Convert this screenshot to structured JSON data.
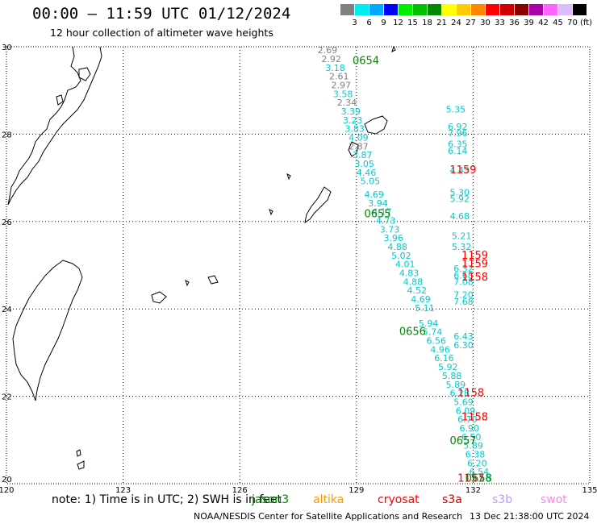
{
  "header": {
    "title": "00:00 — 11:59 UTC 01/12/2024",
    "subtitle": "12 hour collection of altimeter wave heights"
  },
  "legend": {
    "colors": [
      "#808080",
      "#00eeee",
      "#00aaff",
      "#0000ff",
      "#00ee00",
      "#00c000",
      "#008800",
      "#ffff00",
      "#ffcc00",
      "#ff8800",
      "#ff0000",
      "#cc0000",
      "#880000",
      "#aa00aa",
      "#ff66ff",
      "#ddbbff",
      "#000000"
    ],
    "labels": [
      "3",
      "6",
      "9",
      "12",
      "15",
      "18",
      "21",
      "24",
      "27",
      "30",
      "33",
      "36",
      "39",
      "42",
      "45",
      "70"
    ],
    "unit": "(ft)"
  },
  "axes": {
    "lon_ticks": [
      "120",
      "123",
      "126",
      "129",
      "132",
      "135"
    ],
    "lat_ticks": [
      "30",
      "28",
      "26",
      "24",
      "22",
      "20"
    ],
    "lon_range": [
      120,
      135
    ],
    "lat_range": [
      20,
      30
    ]
  },
  "tracks": {
    "labels": [
      {
        "lon": 128.9,
        "lat": 29.6,
        "text": "0654",
        "color": "#008800"
      },
      {
        "lon": 129.2,
        "lat": 26.1,
        "text": "0655",
        "color": "#008800"
      },
      {
        "lon": 130.1,
        "lat": 23.4,
        "text": "0656",
        "color": "#008800"
      },
      {
        "lon": 131.4,
        "lat": 20.9,
        "text": "0657",
        "color": "#008800"
      },
      {
        "lon": 131.8,
        "lat": 20.05,
        "text": "0658",
        "color": "#008800"
      },
      {
        "lon": 131.6,
        "lat": 20.05,
        "text": "1157",
        "color": "#ff0000"
      },
      {
        "lon": 131.4,
        "lat": 27.1,
        "text": "1159",
        "color": "#ff0000"
      },
      {
        "lon": 131.7,
        "lat": 25.15,
        "text": "1159",
        "color": "#ff0000"
      },
      {
        "lon": 131.7,
        "lat": 24.95,
        "text": "1159",
        "color": "#ff0000"
      },
      {
        "lon": 131.7,
        "lat": 24.65,
        "text": "1158",
        "color": "#ff0000"
      },
      {
        "lon": 131.6,
        "lat": 22.0,
        "text": "1158",
        "color": "#ff0000"
      },
      {
        "lon": 131.7,
        "lat": 21.45,
        "text": "1158",
        "color": "#ff0000"
      }
    ],
    "points": [
      {
        "lon": 128.0,
        "lat": 29.85,
        "v": "2.69",
        "color": "#808080"
      },
      {
        "lon": 128.1,
        "lat": 29.65,
        "v": "2.92",
        "color": "#808080"
      },
      {
        "lon": 128.2,
        "lat": 29.45,
        "v": "3.18",
        "color": "#00cccc"
      },
      {
        "lon": 128.3,
        "lat": 29.25,
        "v": "2.61",
        "color": "#808080"
      },
      {
        "lon": 128.35,
        "lat": 29.05,
        "v": "2.97",
        "color": "#808080"
      },
      {
        "lon": 128.4,
        "lat": 28.85,
        "v": "3.58",
        "color": "#00cccc"
      },
      {
        "lon": 128.5,
        "lat": 28.65,
        "v": "2.34",
        "color": "#808080"
      },
      {
        "lon": 128.6,
        "lat": 28.45,
        "v": "3.39",
        "color": "#00cccc"
      },
      {
        "lon": 128.65,
        "lat": 28.25,
        "v": "3.23",
        "color": "#00cccc"
      },
      {
        "lon": 128.7,
        "lat": 28.05,
        "v": "3.83",
        "color": "#00cccc"
      },
      {
        "lon": 128.8,
        "lat": 27.85,
        "v": "4.09",
        "color": "#00cccc"
      },
      {
        "lon": 128.8,
        "lat": 27.65,
        "v": "2.87",
        "color": "#808080"
      },
      {
        "lon": 128.9,
        "lat": 27.45,
        "v": "3.87",
        "color": "#00cccc"
      },
      {
        "lon": 128.95,
        "lat": 27.25,
        "v": "3.05",
        "color": "#00cccc"
      },
      {
        "lon": 129.0,
        "lat": 27.05,
        "v": "4.46",
        "color": "#00cccc"
      },
      {
        "lon": 129.1,
        "lat": 26.85,
        "v": "5.05",
        "color": "#00cccc"
      },
      {
        "lon": 129.2,
        "lat": 26.55,
        "v": "4.69",
        "color": "#00cccc"
      },
      {
        "lon": 129.3,
        "lat": 26.35,
        "v": "3.94",
        "color": "#00cccc"
      },
      {
        "lon": 129.4,
        "lat": 26.15,
        "v": "4.17",
        "color": "#00cccc"
      },
      {
        "lon": 129.5,
        "lat": 25.95,
        "v": "4.73",
        "color": "#00cccc"
      },
      {
        "lon": 129.6,
        "lat": 25.75,
        "v": "3.73",
        "color": "#00cccc"
      },
      {
        "lon": 129.7,
        "lat": 25.55,
        "v": "3.96",
        "color": "#00cccc"
      },
      {
        "lon": 129.8,
        "lat": 25.35,
        "v": "4.88",
        "color": "#00cccc"
      },
      {
        "lon": 129.9,
        "lat": 25.15,
        "v": "5.02",
        "color": "#00cccc"
      },
      {
        "lon": 130.0,
        "lat": 24.95,
        "v": "4.01",
        "color": "#00cccc"
      },
      {
        "lon": 130.1,
        "lat": 24.75,
        "v": "4.83",
        "color": "#00cccc"
      },
      {
        "lon": 130.2,
        "lat": 24.55,
        "v": "4.88",
        "color": "#00cccc"
      },
      {
        "lon": 130.3,
        "lat": 24.35,
        "v": "4.52",
        "color": "#00cccc"
      },
      {
        "lon": 130.4,
        "lat": 24.15,
        "v": "4.69",
        "color": "#00cccc"
      },
      {
        "lon": 130.5,
        "lat": 23.95,
        "v": "5.11",
        "color": "#00cccc"
      },
      {
        "lon": 130.6,
        "lat": 23.6,
        "v": "5.94",
        "color": "#00cccc"
      },
      {
        "lon": 130.7,
        "lat": 23.4,
        "v": "5.74",
        "color": "#00cccc"
      },
      {
        "lon": 130.8,
        "lat": 23.2,
        "v": "6.56",
        "color": "#00cccc"
      },
      {
        "lon": 130.9,
        "lat": 23.0,
        "v": "4.96",
        "color": "#00cccc"
      },
      {
        "lon": 131.0,
        "lat": 22.8,
        "v": "6.16",
        "color": "#00cccc"
      },
      {
        "lon": 131.1,
        "lat": 22.6,
        "v": "5.92",
        "color": "#00cccc"
      },
      {
        "lon": 131.2,
        "lat": 22.4,
        "v": "5.88",
        "color": "#00cccc"
      },
      {
        "lon": 131.3,
        "lat": 22.2,
        "v": "5.89",
        "color": "#00cccc"
      },
      {
        "lon": 131.4,
        "lat": 22.0,
        "v": "6.28",
        "color": "#00cccc"
      },
      {
        "lon": 131.5,
        "lat": 21.8,
        "v": "5.69",
        "color": "#00cccc"
      },
      {
        "lon": 131.55,
        "lat": 21.6,
        "v": "6.09",
        "color": "#00cccc"
      },
      {
        "lon": 131.6,
        "lat": 21.4,
        "v": "6.70",
        "color": "#00cccc"
      },
      {
        "lon": 131.65,
        "lat": 21.2,
        "v": "6.90",
        "color": "#00cccc"
      },
      {
        "lon": 131.7,
        "lat": 21.0,
        "v": "6.50",
        "color": "#00cccc"
      },
      {
        "lon": 131.75,
        "lat": 20.8,
        "v": "5.89",
        "color": "#00cccc"
      },
      {
        "lon": 131.8,
        "lat": 20.6,
        "v": "6.38",
        "color": "#00cccc"
      },
      {
        "lon": 131.85,
        "lat": 20.4,
        "v": "6.20",
        "color": "#00cccc"
      },
      {
        "lon": 131.9,
        "lat": 20.2,
        "v": "6.54",
        "color": "#00cccc"
      },
      {
        "lon": 131.95,
        "lat": 20.05,
        "v": "7.16",
        "color": "#00cccc"
      },
      {
        "lon": 131.3,
        "lat": 28.5,
        "v": "5.35",
        "color": "#00cccc"
      },
      {
        "lon": 131.35,
        "lat": 28.1,
        "v": "6.92",
        "color": "#00cccc"
      },
      {
        "lon": 131.35,
        "lat": 27.95,
        "v": "7.96",
        "color": "#00cccc"
      },
      {
        "lon": 131.35,
        "lat": 27.7,
        "v": "6.35",
        "color": "#00cccc"
      },
      {
        "lon": 131.35,
        "lat": 27.55,
        "v": "6.14",
        "color": "#00cccc"
      },
      {
        "lon": 131.4,
        "lat": 27.1,
        "v": "4.43",
        "color": "#00cccc"
      },
      {
        "lon": 131.4,
        "lat": 26.6,
        "v": "5.30",
        "color": "#00cccc"
      },
      {
        "lon": 131.4,
        "lat": 26.45,
        "v": "5.92",
        "color": "#00cccc"
      },
      {
        "lon": 131.4,
        "lat": 26.05,
        "v": "4.68",
        "color": "#00cccc"
      },
      {
        "lon": 131.45,
        "lat": 25.6,
        "v": "5.21",
        "color": "#00cccc"
      },
      {
        "lon": 131.45,
        "lat": 25.35,
        "v": "5.32",
        "color": "#00cccc"
      },
      {
        "lon": 131.5,
        "lat": 24.85,
        "v": "6.32",
        "color": "#00cccc"
      },
      {
        "lon": 131.5,
        "lat": 24.7,
        "v": "6.68",
        "color": "#00cccc"
      },
      {
        "lon": 131.5,
        "lat": 24.55,
        "v": "7.08",
        "color": "#00cccc"
      },
      {
        "lon": 131.5,
        "lat": 24.25,
        "v": "7.20",
        "color": "#00cccc"
      },
      {
        "lon": 131.5,
        "lat": 24.1,
        "v": "7.68",
        "color": "#00cccc"
      },
      {
        "lon": 131.5,
        "lat": 23.3,
        "v": "6.43",
        "color": "#00cccc"
      },
      {
        "lon": 131.5,
        "lat": 23.1,
        "v": "6.30",
        "color": "#00cccc"
      }
    ]
  },
  "footer": {
    "note": "note: 1) Time is in UTC; 2) SWH is in feet",
    "satellites": [
      {
        "name": "jason3",
        "color": "#008800"
      },
      {
        "name": "altika",
        "color": "#ff9900"
      },
      {
        "name": "cryosat",
        "color": "#ff0000"
      },
      {
        "name": "s3a",
        "color": "#cc0000"
      },
      {
        "name": "s3b",
        "color": "#bb99ff"
      },
      {
        "name": "swot",
        "color": "#ff88dd"
      }
    ],
    "credit": "NOAA/NESDIS Center for Satellite Applications and Research",
    "generated": "13 Dec 21:38:00 UTC 2024"
  }
}
